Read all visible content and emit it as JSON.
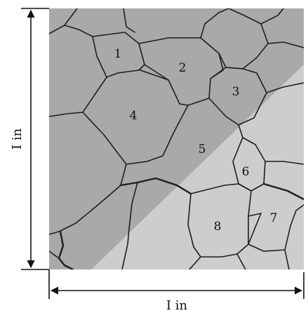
{
  "figure": {
    "grain_labels": [
      "1",
      "2",
      "3",
      "4",
      "5",
      "6",
      "7",
      "8"
    ],
    "vertical_dimension_label": "I in",
    "horizontal_dimension_label": "I in",
    "colors": {
      "background": "#ffffff",
      "micrograph_dark": "#a9a9a9",
      "micrograph_light": "#cdcdcd",
      "grain_boundary": "#1e1e1e",
      "dimension_line": "#111111"
    }
  }
}
